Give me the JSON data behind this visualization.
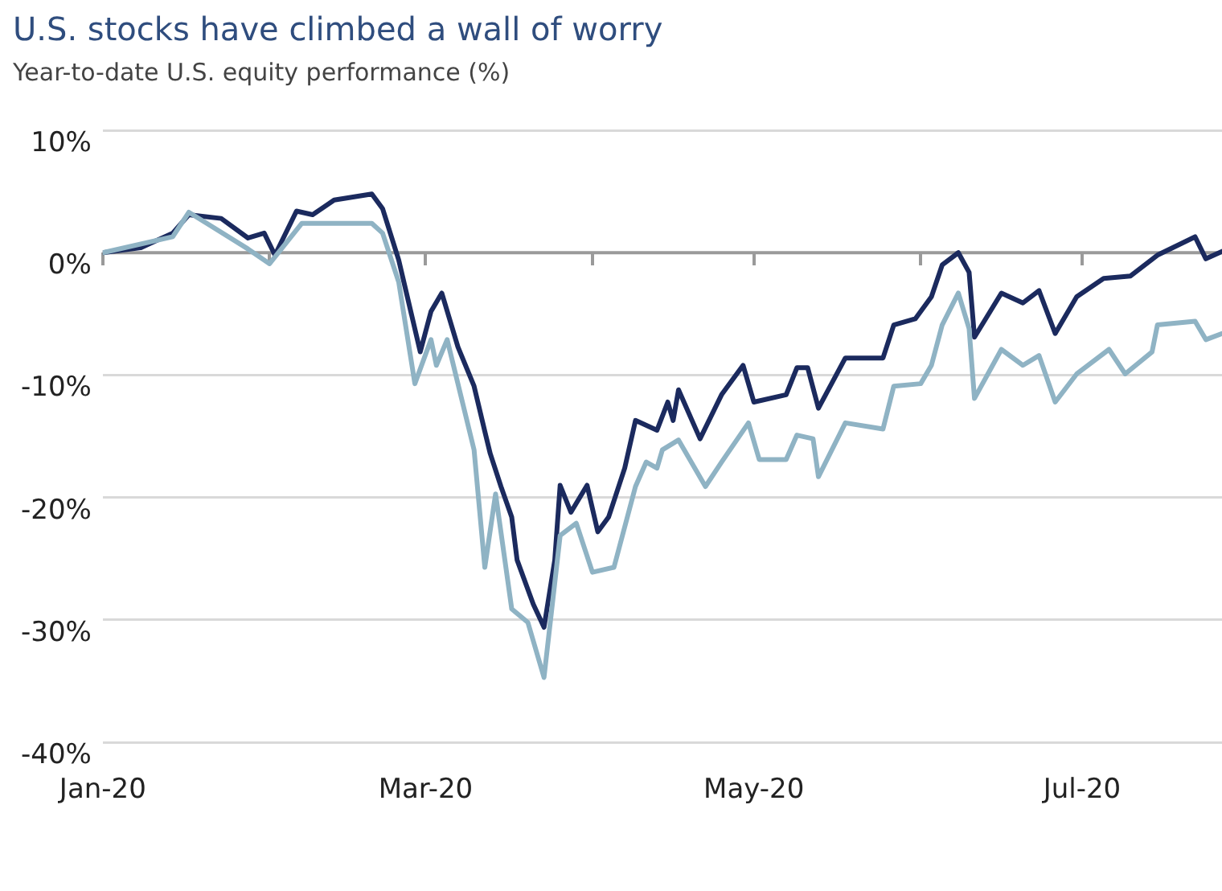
{
  "chart_data": {
    "type": "line",
    "title": "U.S. stocks have climbed a wall of worry",
    "subtitle": "Year-to-date U.S. equity performance (%)",
    "xlim": [
      "2020-01-01",
      "2020-07-27"
    ],
    "xticks": [
      {
        "value": "2020-01-01",
        "label": "Jan-20"
      },
      {
        "value": "2020-02-01",
        "label": null
      },
      {
        "value": "2020-03-01",
        "label": "Mar-20"
      },
      {
        "value": "2020-04-01",
        "label": null
      },
      {
        "value": "2020-05-01",
        "label": "May-20"
      },
      {
        "value": "2020-06-01",
        "label": null
      },
      {
        "value": "2020-07-01",
        "label": "Jul-20"
      }
    ],
    "ylim": [
      -40,
      10
    ],
    "yticks": [
      {
        "value": 10,
        "label": "10%"
      },
      {
        "value": 0,
        "label": "0%"
      },
      {
        "value": -10,
        "label": "-10%"
      },
      {
        "value": -20,
        "label": "-20%"
      },
      {
        "value": -30,
        "label": "-30%"
      },
      {
        "value": -40,
        "label": "-40%"
      }
    ],
    "grid": "y",
    "legend": false,
    "ref_lines": [
      {
        "axis": "y",
        "value": 0,
        "color": "#9a9a9a"
      }
    ],
    "marker": "none",
    "line_style": "solid",
    "series": [
      {
        "color": "#1b2a5e",
        "x": [
          "2020-01-01",
          "2020-01-08",
          "2020-01-14",
          "2020-01-17",
          "2020-01-23",
          "2020-01-28",
          "2020-01-31",
          "2020-02-02",
          "2020-02-06",
          "2020-02-09",
          "2020-02-13",
          "2020-02-20",
          "2020-02-22",
          "2020-02-25",
          "2020-02-29",
          "2020-03-02",
          "2020-03-04",
          "2020-03-07",
          "2020-03-10",
          "2020-03-12",
          "2020-03-13",
          "2020-03-15",
          "2020-03-17",
          "2020-03-18",
          "2020-03-21",
          "2020-03-23",
          "2020-03-25",
          "2020-03-26",
          "2020-03-28",
          "2020-03-31",
          "2020-04-02",
          "2020-04-04",
          "2020-04-07",
          "2020-04-09",
          "2020-04-13",
          "2020-04-15",
          "2020-04-16",
          "2020-04-17",
          "2020-04-21",
          "2020-04-25",
          "2020-04-29",
          "2020-05-01",
          "2020-05-07",
          "2020-05-09",
          "2020-05-11",
          "2020-05-13",
          "2020-05-18",
          "2020-05-21",
          "2020-05-25",
          "2020-05-27",
          "2020-05-31",
          "2020-06-03",
          "2020-06-05",
          "2020-06-08",
          "2020-06-10",
          "2020-06-11",
          "2020-06-16",
          "2020-06-20",
          "2020-06-23",
          "2020-06-26",
          "2020-06-30",
          "2020-07-05",
          "2020-07-10",
          "2020-07-15",
          "2020-07-22",
          "2020-07-24",
          "2020-07-27"
        ],
        "values": [
          0,
          0.4,
          1.6,
          3.1,
          2.8,
          1.2,
          1.6,
          -0.2,
          3.4,
          3.1,
          4.3,
          4.8,
          3.6,
          -0.6,
          -8.1,
          -4.8,
          -3.3,
          -7.7,
          -10.9,
          -14.6,
          -16.4,
          -19.1,
          -21.6,
          -25.1,
          -28.7,
          -30.6,
          -25.1,
          -19.0,
          -21.2,
          -19.0,
          -22.8,
          -21.6,
          -17.6,
          -13.7,
          -14.5,
          -12.2,
          -13.7,
          -11.2,
          -15.2,
          -11.6,
          -9.2,
          -12.2,
          -11.6,
          -9.4,
          -9.4,
          -12.7,
          -8.6,
          -8.6,
          -8.6,
          -5.9,
          -5.4,
          -3.6,
          -1.0,
          0.0,
          -1.6,
          -6.9,
          -3.3,
          -4.1,
          -3.1,
          -6.6,
          -3.6,
          -2.1,
          -1.9,
          -0.2,
          1.3,
          -0.5,
          0.1
        ]
      },
      {
        "color": "#8fb3c4",
        "x": [
          "2020-01-01",
          "2020-01-14",
          "2020-01-17",
          "2020-01-28",
          "2020-02-01",
          "2020-02-07",
          "2020-02-13",
          "2020-02-20",
          "2020-02-22",
          "2020-02-25",
          "2020-02-28",
          "2020-03-02",
          "2020-03-03",
          "2020-03-05",
          "2020-03-10",
          "2020-03-12",
          "2020-03-14",
          "2020-03-17",
          "2020-03-20",
          "2020-03-23",
          "2020-03-26",
          "2020-03-29",
          "2020-04-01",
          "2020-04-05",
          "2020-04-09",
          "2020-04-11",
          "2020-04-13",
          "2020-04-14",
          "2020-04-17",
          "2020-04-22",
          "2020-04-25",
          "2020-04-30",
          "2020-05-02",
          "2020-05-07",
          "2020-05-09",
          "2020-05-12",
          "2020-05-13",
          "2020-05-18",
          "2020-05-25",
          "2020-05-27",
          "2020-06-01",
          "2020-06-03",
          "2020-06-05",
          "2020-06-08",
          "2020-06-10",
          "2020-06-11",
          "2020-06-16",
          "2020-06-20",
          "2020-06-23",
          "2020-06-26",
          "2020-06-30",
          "2020-07-06",
          "2020-07-09",
          "2020-07-14",
          "2020-07-15",
          "2020-07-22",
          "2020-07-24",
          "2020-07-27"
        ],
        "values": [
          0,
          1.3,
          3.3,
          0.3,
          -0.9,
          2.4,
          2.4,
          2.4,
          1.6,
          -2.4,
          -10.7,
          -7.1,
          -9.2,
          -7.1,
          -16.1,
          -25.7,
          -19.7,
          -29.1,
          -30.2,
          -34.7,
          -23.1,
          -22.1,
          -26.1,
          -25.7,
          -19.1,
          -17.1,
          -17.6,
          -16.1,
          -15.3,
          -19.1,
          -17.1,
          -13.9,
          -16.9,
          -16.9,
          -14.9,
          -15.2,
          -18.3,
          -13.9,
          -14.4,
          -10.9,
          -10.7,
          -9.2,
          -5.9,
          -3.3,
          -6.2,
          -11.9,
          -7.9,
          -9.2,
          -8.4,
          -12.2,
          -9.9,
          -7.9,
          -9.9,
          -8.1,
          -5.9,
          -5.6,
          -7.1,
          -6.6
        ]
      }
    ]
  }
}
